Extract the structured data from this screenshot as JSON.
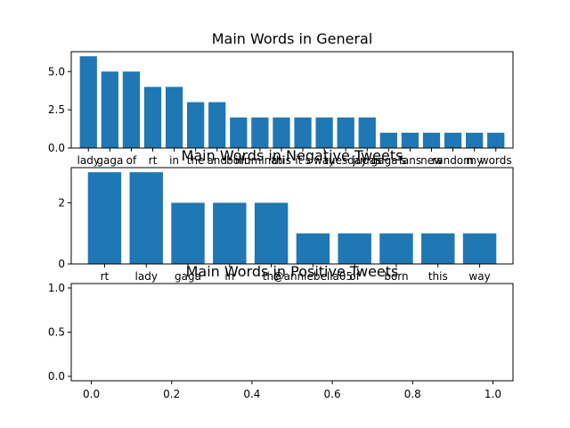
{
  "chart_data": [
    {
      "type": "bar",
      "title": "Main Words in General",
      "categories": [
        "lady",
        "gaga",
        "of",
        "rt",
        "in",
        "the",
        "and",
        "born",
        "illuminati",
        "this",
        "it's",
        "way",
        "tuesday",
        "judas",
        "gaga's",
        "fans",
        "new",
        "random",
        "my",
        "words"
      ],
      "values": [
        6,
        5,
        5,
        4,
        4,
        3,
        3,
        2,
        2,
        2,
        2,
        2,
        2,
        2,
        1,
        1,
        1,
        1,
        1,
        1
      ],
      "ylim": [
        0,
        6.3
      ],
      "yticks": [
        "0.0",
        "2.5",
        "5.0"
      ],
      "color": "#1f77b4",
      "grid": false
    },
    {
      "type": "bar",
      "title": "Main Words in Negative Tweets",
      "categories": [
        "rt",
        "lady",
        "gaga",
        "in",
        "the",
        "@anniebella05",
        "of",
        "born",
        "this",
        "way"
      ],
      "values": [
        3,
        3,
        2,
        2,
        2,
        1,
        1,
        1,
        1,
        1
      ],
      "ylim": [
        0,
        3.15
      ],
      "yticks": [
        "0",
        "2"
      ],
      "color": "#1f77b4",
      "grid": false
    },
    {
      "type": "bar",
      "title": "Main Words in Positive Tweets",
      "categories": [],
      "values": [],
      "xlim": [
        -0.05,
        1.05
      ],
      "ylim": [
        -0.05,
        1.05
      ],
      "xticks": [
        "0.0",
        "0.2",
        "0.4",
        "0.6",
        "0.8",
        "1.0"
      ],
      "yticks": [
        "0.0",
        "0.5",
        "1.0"
      ],
      "grid": false
    }
  ]
}
